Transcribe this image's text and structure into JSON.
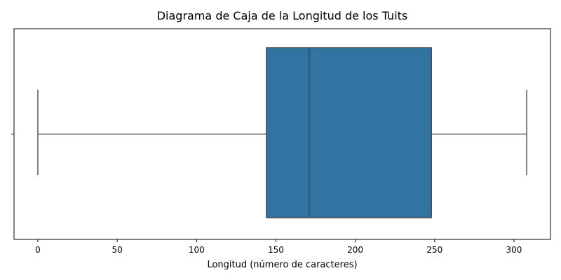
{
  "chart_data": {
    "type": "box",
    "title": "Diagrama de Caja de la Longitud de los Tuits",
    "xlabel": "Longitud (número de caracteres)",
    "ylabel": "",
    "xlim": [
      -15,
      323
    ],
    "x_ticks": [
      0,
      50,
      100,
      150,
      200,
      250,
      300
    ],
    "y_ticks": [
      ""
    ],
    "grid": false,
    "box": {
      "whisker_low": 0,
      "q1": 144,
      "median": 171,
      "q3": 248,
      "whisker_high": 308
    },
    "colors": {
      "box_fill": "#3274a1",
      "line": "#3f3f3f",
      "frame": "#000000"
    }
  }
}
